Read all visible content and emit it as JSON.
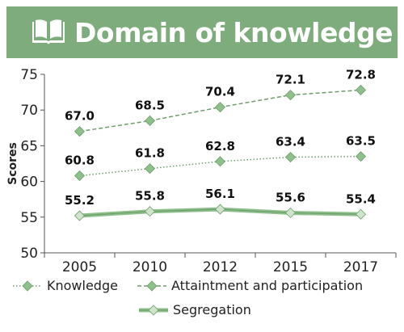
{
  "header": {
    "title": "Domain of knowledge"
  },
  "colors": {
    "header_bg": "#7fac7d",
    "series_green": "#6e9e6c",
    "marker": "#8fbf8c",
    "axis": "#555555"
  },
  "chart_data": {
    "type": "line",
    "categories": [
      "2005",
      "2010",
      "2012",
      "2015",
      "2017"
    ],
    "ylabel": "Scores",
    "ylim": [
      50,
      75
    ],
    "yticks": [
      50,
      55,
      60,
      65,
      70,
      75
    ],
    "grid": false,
    "legend_placement": "bottom",
    "series": [
      {
        "name": "Knowledge",
        "style": "dotted",
        "values": [
          60.8,
          61.8,
          62.8,
          63.4,
          63.5
        ],
        "labels": [
          "60.8",
          "61.8",
          "62.8",
          "63.4",
          "63.5"
        ]
      },
      {
        "name": "Attaintment and participation",
        "style": "dashed",
        "values": [
          67.0,
          68.5,
          70.4,
          72.1,
          72.8
        ],
        "labels": [
          "67.0",
          "68.5",
          "70.4",
          "72.1",
          "72.8"
        ]
      },
      {
        "name": "Segregation",
        "style": "solid-thick",
        "values": [
          55.2,
          55.8,
          56.1,
          55.6,
          55.4
        ],
        "labels": [
          "55.2",
          "55.8",
          "56.1",
          "55.6",
          "55.4"
        ]
      }
    ]
  }
}
